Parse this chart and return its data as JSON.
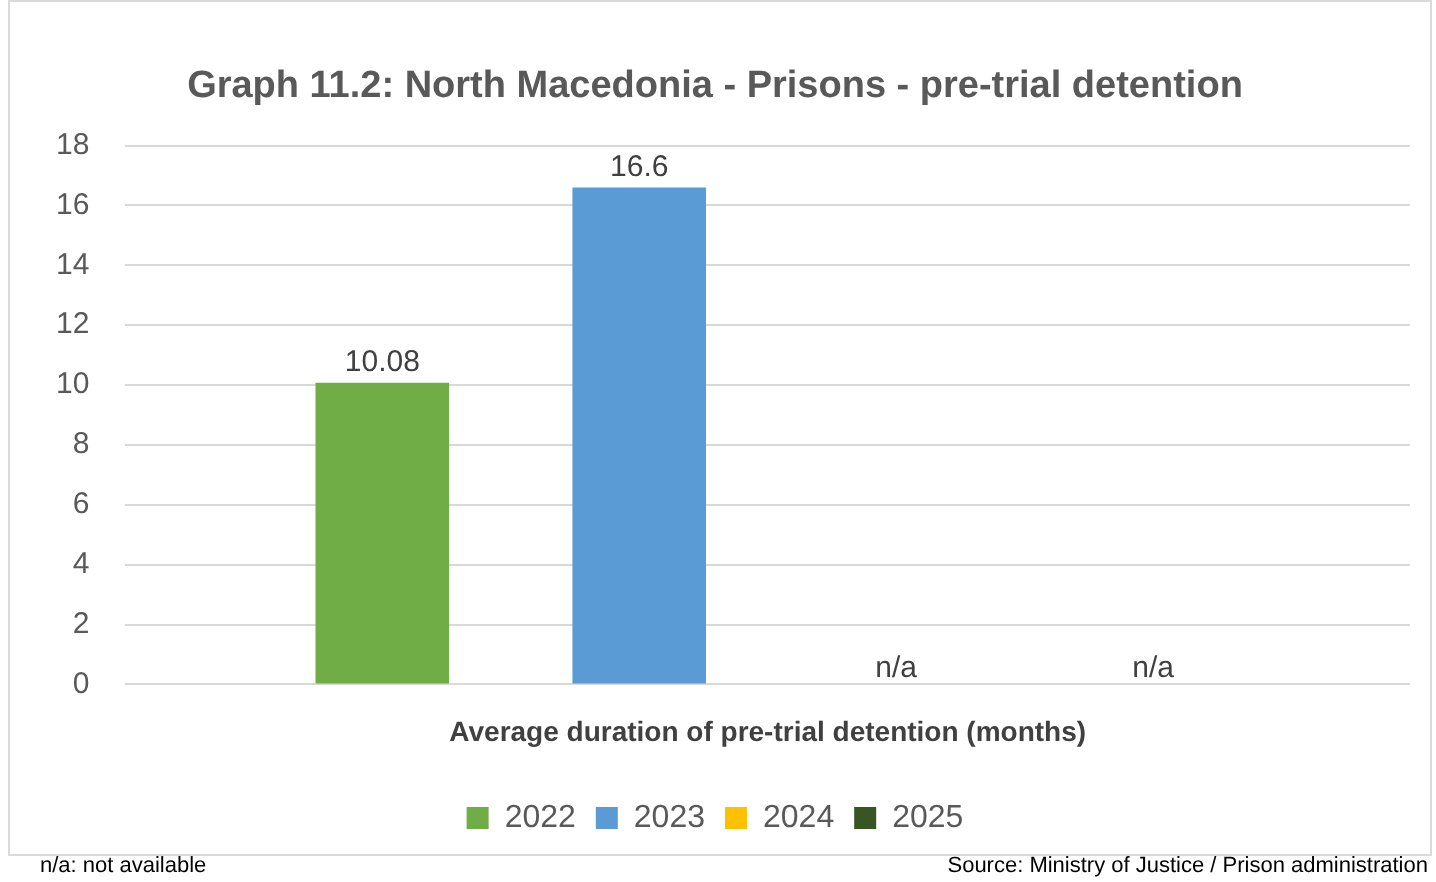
{
  "chart_data": {
    "type": "bar",
    "title": "Graph 11.2: North Macedonia - Prisons - pre-trial detention",
    "categories": [
      "Average duration of pre-trial detention (months)"
    ],
    "series": [
      {
        "name": "2022",
        "color": "#70ad47",
        "values": [
          10.08
        ],
        "value_labels": [
          "10.08"
        ]
      },
      {
        "name": "2023",
        "color": "#5b9bd5",
        "values": [
          16.6
        ],
        "value_labels": [
          "16.6"
        ]
      },
      {
        "name": "2024",
        "color": "#ffc000",
        "values": [
          null
        ],
        "value_labels": [
          "n/a"
        ]
      },
      {
        "name": "2025",
        "color": "#375623",
        "values": [
          null
        ],
        "value_labels": [
          "n/a"
        ]
      }
    ],
    "ylim": [
      0,
      18
    ],
    "yticks": [
      0,
      2,
      4,
      6,
      8,
      10,
      12,
      14,
      16,
      18
    ],
    "grid": "y",
    "legend": "bottom",
    "annotations": [
      "n/a: not available",
      "Source: Ministry of Justice / Prison administration"
    ]
  }
}
